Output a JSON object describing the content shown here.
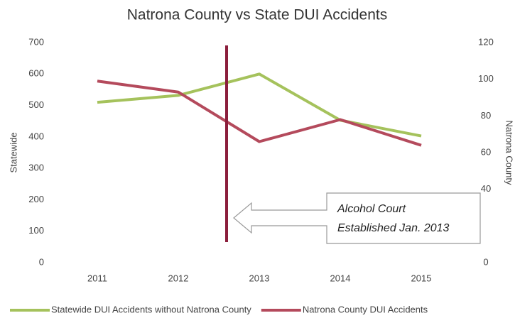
{
  "chart_data": {
    "type": "line",
    "title": "Natrona County vs State DUI Accidents",
    "y_label": "Statewide",
    "y2_label": "Natrona County",
    "categories": [
      "2011",
      "2012",
      "2013",
      "2014",
      "2015"
    ],
    "series": [
      {
        "name": "Statewide DUI Accidents without Natrona County",
        "color": "#a5c25c",
        "values": [
          510,
          532,
          600,
          453,
          403
        ]
      },
      {
        "name": "Natrona County DUI Accidents",
        "color": "#b44a5c",
        "axis": "y2",
        "values": [
          99,
          93,
          66,
          78,
          64
        ]
      }
    ],
    "ylim": [
      0,
      700
    ],
    "yticks": [
      0,
      100,
      200,
      300,
      400,
      500,
      600,
      700
    ],
    "y2lim": [
      0,
      120
    ],
    "y2ticks": [
      0,
      40,
      60,
      80,
      100,
      120
    ],
    "annotation": [
      "Alcohol Court",
      "Established Jan. 2013"
    ],
    "legend": "bottom"
  }
}
